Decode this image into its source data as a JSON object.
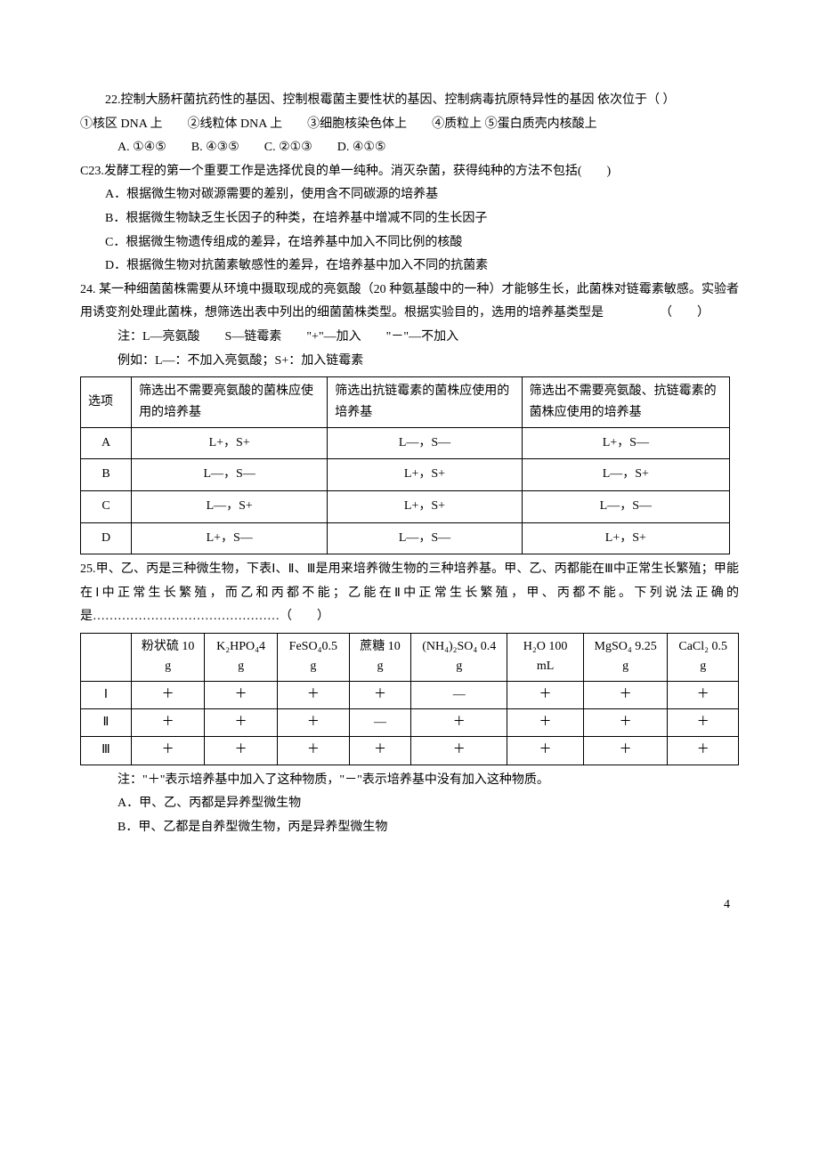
{
  "q22": {
    "text": "22.控制大肠杆菌抗药性的基因、控制根霉菌主要性状的基因、控制病毒抗原特异性的基因 依次位于（ ）",
    "items": "①核区 DNA 上　　②线粒体 DNA 上　　③细胞核染色体上　　④质粒上 ⑤蛋白质壳内核酸上",
    "opts": "A. ①④⑤　　B. ④③⑤　　C. ②①③　　D. ④①⑤"
  },
  "q23": {
    "text": "C23.发酵工程的第一个重要工作是选择优良的单一纯种。消灭杂菌，获得纯种的方法不包括(　　)",
    "a": "A．根据微生物对碳源需要的差别，使用含不同碳源的培养基",
    "b": "B．根据微生物缺乏生长因子的种类，在培养基中增减不同的生长因子",
    "c": "C．根据微生物遗传组成的差异，在培养基中加入不同比例的核酸",
    "d": "D．根据微生物对抗菌素敏感性的差异，在培养基中加入不同的抗菌素"
  },
  "q24": {
    "text1": "24. 某一种细菌菌株需要从环境中摄取现成的亮氨酸（20 种氨基酸中的一种）才能够生长，此菌株对链霉素敏感。实验者用诱变剂处理此菌株，想筛选出表中列出的细菌菌株类型。根据实验目的，选用的培养基类型是　　　　　（　　）",
    "note1": "注：L—亮氨酸　　S—链霉素　　\"+\"—加入　　\"－\"—不加入",
    "note2": "例如：L—：不加入亮氨酸；S+：加入链霉素",
    "hdr1": "选项",
    "hdr2": "筛选出不需要亮氨酸的菌株应使用的培养基",
    "hdr3": "筛选出抗链霉素的菌株应使用的培养基",
    "hdr4": "筛选出不需要亮氨酸、抗链霉素的菌株应使用的培养基",
    "rows": [
      [
        "A",
        "L+，S+",
        "L—，S—",
        "L+，S—"
      ],
      [
        "B",
        "L—，S—",
        "L+，S+",
        "L—，S+"
      ],
      [
        "C",
        "L—，S+",
        "L+，S+",
        "L—，S—"
      ],
      [
        "D",
        "L+，S—",
        "L—，S—",
        "L+，S+"
      ]
    ]
  },
  "q25": {
    "text": "25.甲、乙、丙是三种微生物，下表Ⅰ、Ⅱ、Ⅲ是用来培养微生物的三种培养基。甲、乙、丙都能在Ⅲ中正常生长繁殖；甲能在Ⅰ中正常生长繁殖，而乙和丙都不能；乙能在Ⅱ中正常生长繁殖，甲、丙都不能。下列说法正确的是………………………………………（　　）",
    "hdr": [
      "",
      "粉状硫 10 g",
      "K₂HPO₄4 g",
      "FeSO₄0.5 g",
      "蔗糖 10 g",
      "(NH₄)₂SO₄ 0.4 g",
      "H₂O 100 mL",
      "MgSO₄ 9.25 g",
      "CaCl₂ 0.5 g"
    ],
    "rows": [
      [
        "Ⅰ",
        "＋",
        "＋",
        "＋",
        "＋",
        "—",
        "＋",
        "＋",
        "＋"
      ],
      [
        "Ⅱ",
        "＋",
        "＋",
        "＋",
        "—",
        "＋",
        "＋",
        "＋",
        "＋"
      ],
      [
        "Ⅲ",
        "＋",
        "＋",
        "＋",
        "＋",
        "＋",
        "＋",
        "＋",
        "＋"
      ]
    ],
    "note": "注：\"＋\"表示培养基中加入了这种物质，\"－\"表示培养基中没有加入这种物质。",
    "a": "A．甲、乙、丙都是异养型微生物",
    "b": "B．甲、乙都是自养型微生物，丙是异养型微生物"
  },
  "pagenum": "4"
}
